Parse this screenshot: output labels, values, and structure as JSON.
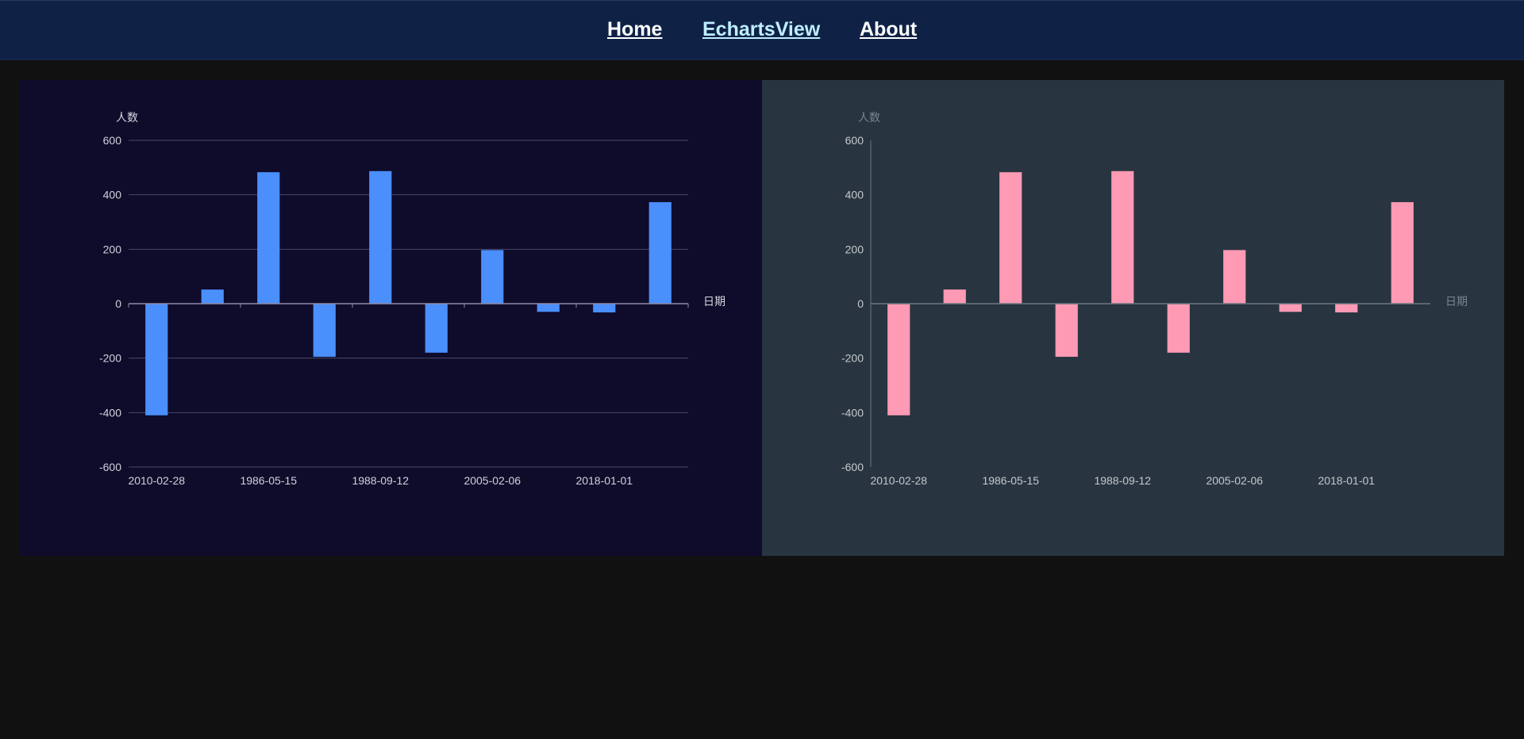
{
  "nav": {
    "home": "Home",
    "echarts": "EchartsView",
    "about": "About"
  },
  "chart_data": [
    {
      "type": "bar",
      "theme": "dark-navy",
      "y_axis_name": "人数",
      "x_axis_name": "日期",
      "ylim": [
        -600,
        600
      ],
      "yticks": [
        600,
        400,
        200,
        0,
        -200,
        -400,
        -600
      ],
      "categories": [
        "2010-02-28",
        "",
        "1986-05-15",
        "",
        "1988-09-12",
        "",
        "2005-02-06",
        "",
        "2018-01-01",
        ""
      ],
      "values": [
        -410,
        52,
        483,
        -195,
        487,
        -180,
        197,
        -30,
        -32,
        373
      ],
      "grid": true,
      "colors": {
        "bar": "#4a8ffc",
        "axis_label": "#cfd3dc",
        "grid": "#4a4868",
        "axis": "#8e8aa8",
        "name": "#d6d8e0"
      }
    },
    {
      "type": "bar",
      "theme": "dark-slate",
      "y_axis_name": "人数",
      "x_axis_name": "日期",
      "ylim": [
        -600,
        600
      ],
      "yticks": [
        600,
        400,
        200,
        0,
        -200,
        -400,
        -600
      ],
      "categories": [
        "2010-02-28",
        "",
        "1986-05-15",
        "",
        "1988-09-12",
        "",
        "2005-02-06",
        "",
        "2018-01-01",
        ""
      ],
      "values": [
        -410,
        52,
        483,
        -195,
        487,
        -180,
        197,
        -30,
        -32,
        373
      ],
      "grid": false,
      "colors": {
        "bar": "#fe9ab4",
        "axis_label": "#c4c8cc",
        "grid": "none",
        "axis": "#6a7680",
        "name": "#7a868e"
      }
    }
  ]
}
